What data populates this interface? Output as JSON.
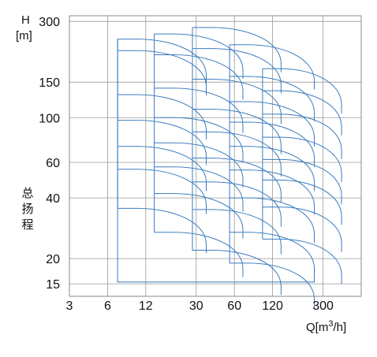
{
  "chart_data": {
    "type": "line",
    "xlabel": "Q[m³/h]",
    "ylabel_top": "H",
    "ylabel_unit": "[m]",
    "ylabel_side": "总扬程",
    "x_scale": "log",
    "y_scale": "log",
    "xlim": [
      3,
      600
    ],
    "ylim": [
      13,
      320
    ],
    "x_ticks": [
      3,
      6,
      12,
      30,
      60,
      120,
      300
    ],
    "x_tick_labels": [
      "3",
      "6",
      "12",
      "30",
      "60",
      "120",
      "300"
    ],
    "y_ticks": [
      15,
      20,
      40,
      60,
      100,
      150,
      300
    ],
    "y_tick_labels": [
      "15",
      "20",
      "40",
      "60",
      "100",
      "150",
      "300"
    ],
    "grid": true,
    "line_color": "#3a7bbf",
    "frame": {
      "q_min": 7.2,
      "q_max": 256,
      "h_min": 15.3
    },
    "pump_models": [
      {
        "q_start": 7.2,
        "q_end": 36,
        "heads": [
          35.5,
          55.5,
          72,
          97,
          130,
          215,
          245
        ]
      },
      {
        "q_start": 14,
        "q_end": 70,
        "heads": [
          27,
          42,
          57,
          75,
          100,
          140,
          205,
          260
        ]
      },
      {
        "q_start": 28,
        "q_end": 140,
        "heads": [
          22,
          35,
          48,
          63,
          85,
          110,
          155,
          220,
          280
        ]
      },
      {
        "q_start": 55,
        "q_end": 256,
        "heads": [
          19,
          27,
          40,
          55,
          72,
          95,
          120,
          160,
          230
        ]
      },
      {
        "q_start": 100,
        "q_end": 420,
        "heads": [
          25,
          36,
          49,
          62,
          80,
          104,
          136,
          175
        ]
      }
    ]
  }
}
